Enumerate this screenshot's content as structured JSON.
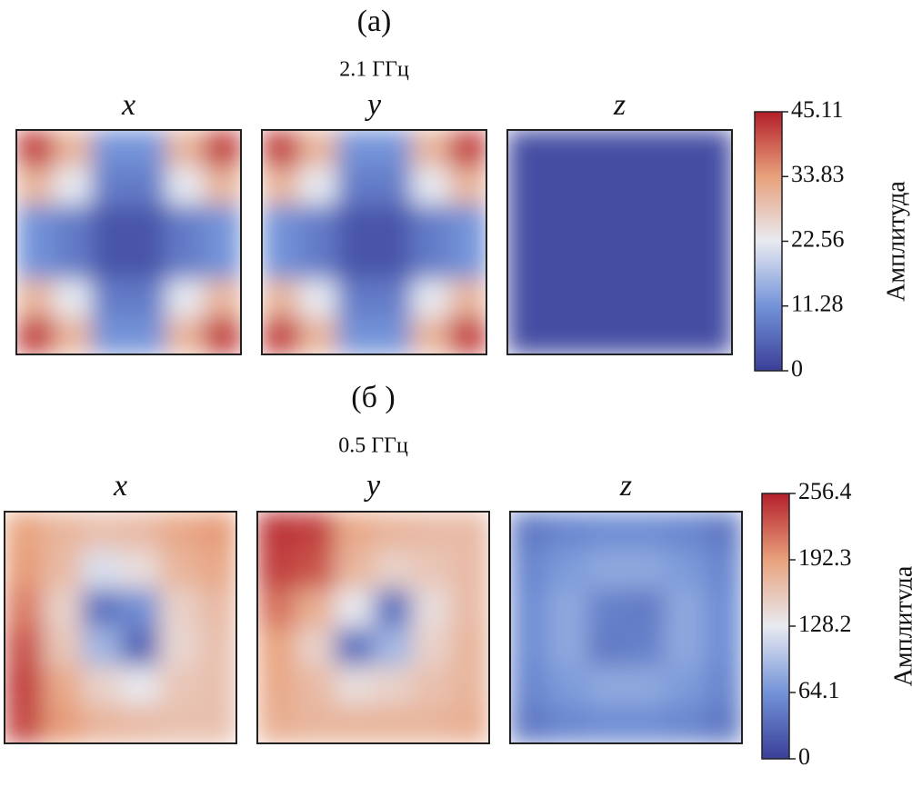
{
  "chart_data": [
    {
      "type": "heatmap",
      "title": "(a)",
      "subtitle": "2.1 ГГц",
      "colorbar_label": "Амплитуда",
      "zlim": [
        0,
        45.11
      ],
      "zticks": [
        0,
        11.28,
        22.56,
        33.83,
        45.11
      ],
      "colors": [
        "#3a3f98",
        "#7393d8",
        "#e8eaf1",
        "#e8a17c",
        "#b41f2a"
      ],
      "panels": [
        {
          "title": "x",
          "values": [
            [
              42,
              30.7,
              11.3,
              11.3,
              30.7,
              42
            ],
            [
              30.7,
              22.5,
              8.2,
              8.2,
              22.5,
              30.7
            ],
            [
              11.3,
              8.2,
              3,
              3,
              8.2,
              11.3
            ],
            [
              11.3,
              8.2,
              3,
              3,
              8.2,
              11.3
            ],
            [
              30.7,
              22.5,
              8.2,
              8.2,
              22.5,
              30.7
            ],
            [
              42,
              30.7,
              11.3,
              11.3,
              30.7,
              42
            ]
          ]
        },
        {
          "title": "y",
          "values": [
            [
              42,
              30.7,
              11.3,
              11.3,
              30.7,
              42
            ],
            [
              30.7,
              22.5,
              8.2,
              8.2,
              22.5,
              30.7
            ],
            [
              11.3,
              8.2,
              3,
              3,
              8.2,
              11.3
            ],
            [
              11.3,
              8.2,
              3,
              3,
              8.2,
              11.3
            ],
            [
              30.7,
              22.5,
              8.2,
              8.2,
              22.5,
              30.7
            ],
            [
              42,
              30.7,
              11.3,
              11.3,
              30.7,
              42
            ]
          ]
        },
        {
          "title": "z",
          "values": [
            [
              2,
              2,
              2,
              2,
              2,
              2
            ],
            [
              2,
              2,
              2,
              2,
              2,
              2
            ],
            [
              2,
              2,
              2,
              2,
              2,
              2
            ],
            [
              2,
              2,
              2,
              2,
              2,
              2
            ],
            [
              2,
              2,
              2,
              2,
              2,
              2
            ],
            [
              2,
              2,
              2,
              2,
              2,
              2
            ]
          ]
        }
      ]
    },
    {
      "type": "heatmap",
      "title": "(б )",
      "subtitle": "0.5 ГГц",
      "colorbar_label": "Амплитуда",
      "zlim": [
        0,
        256.4
      ],
      "zticks": [
        0,
        64.1,
        128.2,
        192.3,
        256.4
      ],
      "colors": [
        "#3a3f98",
        "#7393d8",
        "#e8eaf1",
        "#e8a17c",
        "#b41f2a"
      ],
      "panels": [
        {
          "title": "x",
          "values": [
            [
              190,
              175,
              165,
              170,
              185,
              195
            ],
            [
              195,
              170,
              120,
              140,
              175,
              185
            ],
            [
              210,
              150,
              40,
              60,
              150,
              170
            ],
            [
              230,
              160,
              90,
              30,
              145,
              165
            ],
            [
              240,
              185,
              150,
              130,
              160,
              165
            ],
            [
              235,
              195,
              175,
              170,
              165,
              165
            ]
          ]
        },
        {
          "title": "y",
          "values": [
            [
              245,
              240,
              185,
              175,
              170,
              170
            ],
            [
              240,
              230,
              175,
              150,
              160,
              170
            ],
            [
              215,
              180,
              130,
              40,
              140,
              170
            ],
            [
              190,
              150,
              40,
              90,
              150,
              175
            ],
            [
              185,
              170,
              140,
              150,
              165,
              175
            ],
            [
              180,
              175,
              175,
              175,
              175,
              180
            ]
          ]
        },
        {
          "title": "z",
          "values": [
            [
              45,
              55,
              60,
              60,
              55,
              45
            ],
            [
              55,
              70,
              80,
              80,
              70,
              55
            ],
            [
              60,
              80,
              50,
              45,
              80,
              60
            ],
            [
              60,
              80,
              45,
              50,
              80,
              60
            ],
            [
              55,
              70,
              80,
              80,
              70,
              55
            ],
            [
              45,
              55,
              60,
              60,
              55,
              45
            ]
          ]
        }
      ]
    }
  ]
}
